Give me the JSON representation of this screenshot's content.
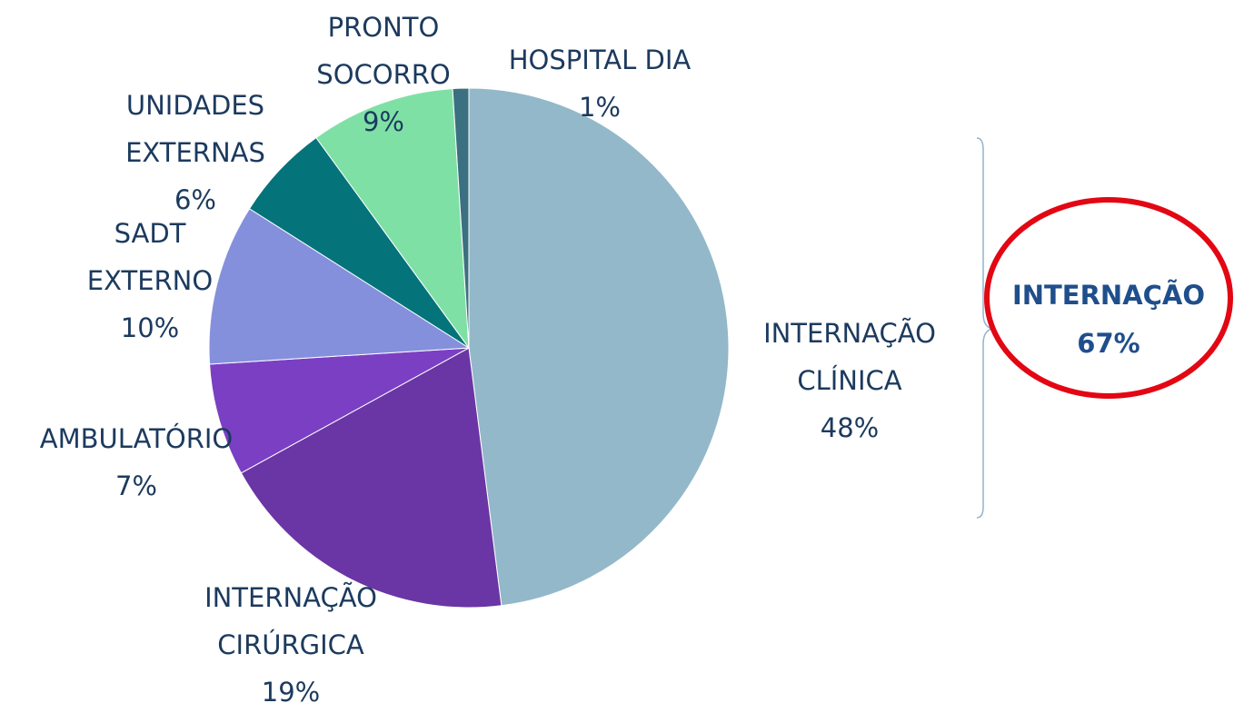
{
  "chart_data": {
    "type": "pie",
    "categories": [
      "INTERNAÇÃO CLÍNICA",
      "INTERNAÇÃO CIRÚRGICA",
      "AMBULATÓRIO",
      "SADT EXTERNO",
      "UNIDADES EXTERNAS",
      "PRONTO SOCORRO",
      "HOSPITAL DIA"
    ],
    "values": [
      48,
      19,
      7,
      10,
      6,
      9,
      1
    ],
    "value_labels": [
      "48%",
      "19%",
      "7%",
      "10%",
      "6%",
      "9%",
      "1%"
    ],
    "colors": [
      "#93b8c9",
      "#6a35a5",
      "#7b3fc4",
      "#8490dc",
      "#05737a",
      "#7fe0a6",
      "#3b7080"
    ],
    "annotation": [
      "INTERNAÇÃO",
      "67%"
    ]
  }
}
